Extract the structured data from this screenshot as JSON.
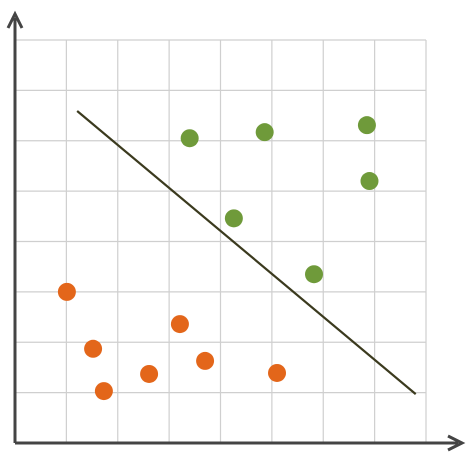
{
  "chart_data": {
    "type": "scatter",
    "xlim": [
      0,
      8
    ],
    "ylim": [
      0,
      8
    ],
    "xticks": [
      0,
      1,
      2,
      3,
      4,
      5,
      6,
      7,
      8
    ],
    "yticks": [
      0,
      1,
      2,
      3,
      4,
      5,
      6,
      7,
      8
    ],
    "grid": true,
    "series": [
      {
        "color": "#6f9a3a",
        "x": [
          3.4,
          4.86,
          6.85,
          6.9,
          4.26,
          5.82
        ],
        "values": [
          6.05,
          6.17,
          6.31,
          5.2,
          4.46,
          3.35
        ]
      },
      {
        "color": "#e3661a",
        "x": [
          1.01,
          1.52,
          1.73,
          2.61,
          3.21,
          3.7,
          5.1
        ],
        "values": [
          3.0,
          1.87,
          1.03,
          1.37,
          2.36,
          1.63,
          1.39
        ]
      }
    ],
    "boundary": {
      "color": "#3b3a1e",
      "x": [
        1.21,
        7.8
      ],
      "values": [
        6.59,
        0.97
      ]
    }
  }
}
